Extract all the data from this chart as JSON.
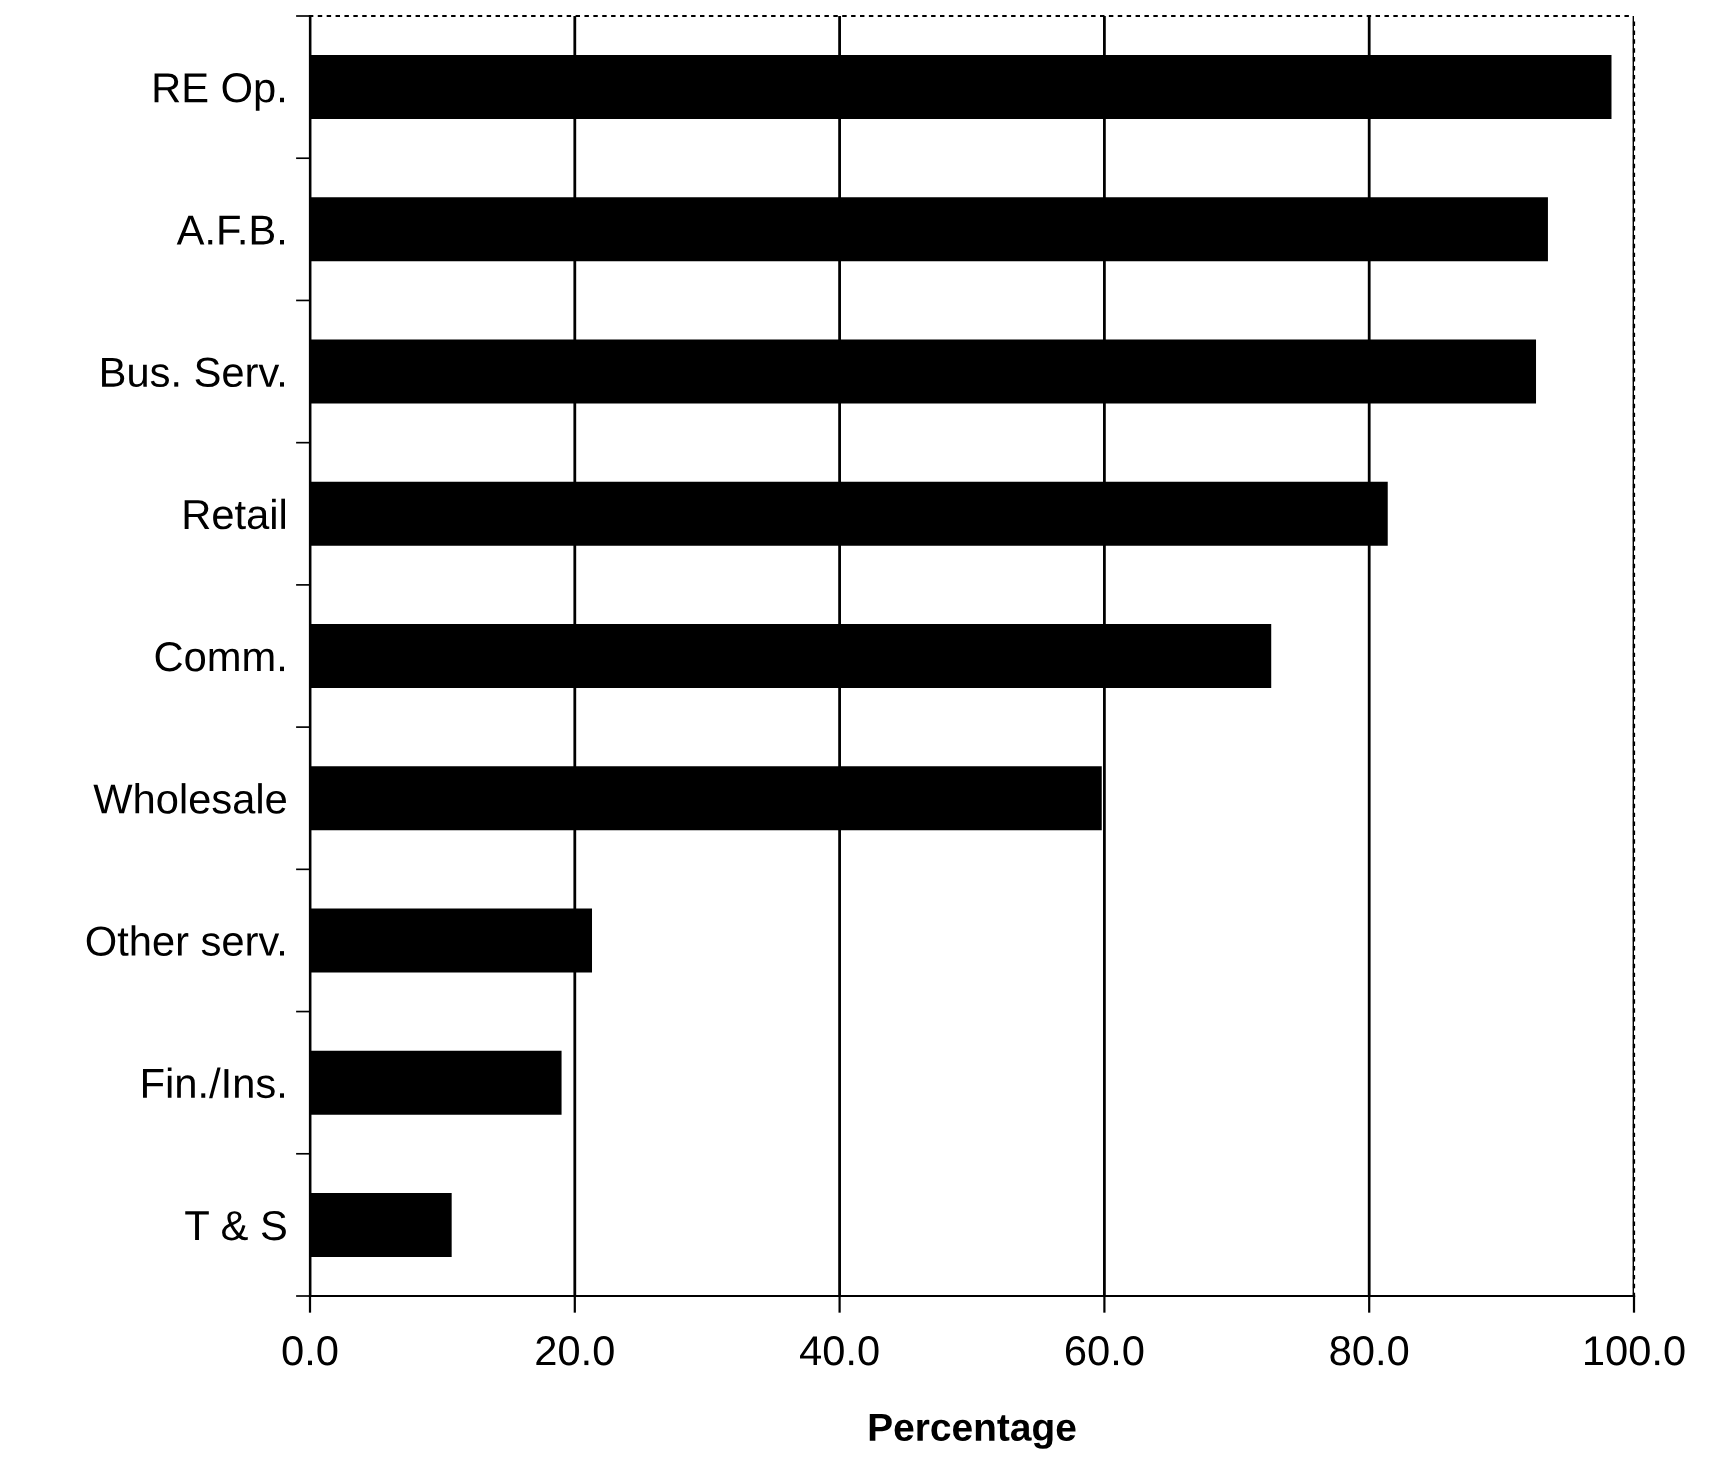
{
  "chart_data": {
    "type": "bar",
    "orientation": "horizontal",
    "xlabel": "Percentage",
    "categories": [
      "RE Op.",
      "A.F.B.",
      "Bus. Serv.",
      "Retail",
      "Comm.",
      "Wholesale",
      "Other serv.",
      "Fin./Ins.",
      "T & S"
    ],
    "values": [
      98.3,
      93.5,
      92.6,
      81.4,
      72.6,
      59.8,
      21.3,
      19.0,
      10.7
    ],
    "color": "#000000",
    "xlim": [
      0,
      100
    ],
    "xticks": [
      {
        "value": 0,
        "label": "0.0"
      },
      {
        "value": 20,
        "label": "20.0"
      },
      {
        "value": 40,
        "label": "40.0"
      },
      {
        "value": 60,
        "label": "60.0"
      },
      {
        "value": 80,
        "label": "80.0"
      },
      {
        "value": 100,
        "label": "100.0"
      }
    ],
    "grid": "x"
  }
}
